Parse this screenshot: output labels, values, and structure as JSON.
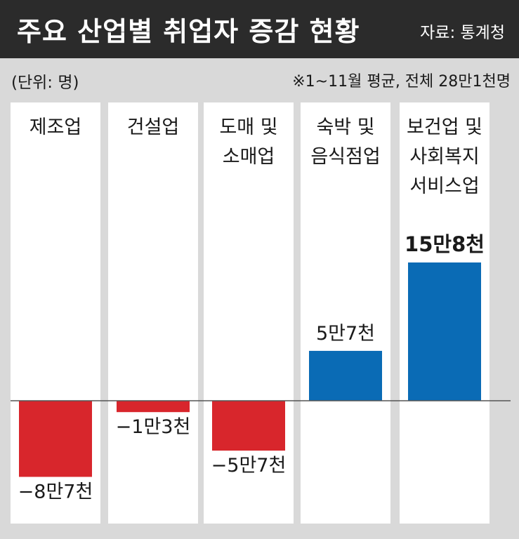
{
  "header": {
    "title": "주요 산업별 취업자 증감 현황",
    "source": "자료: 통계청"
  },
  "unit_text": "(단위: 명)",
  "note_text": "※1~11월 평균, 전체 28만1천명",
  "colors": {
    "negative": "#d8262c",
    "positive": "#0a6bb5",
    "panel": "#ffffff",
    "background": "#d9d9d9",
    "header": "#2b2b2b"
  },
  "chart_data": {
    "type": "bar",
    "categories": [
      [
        "제조업"
      ],
      [
        "건설업"
      ],
      [
        "도매 및",
        "소매업"
      ],
      [
        "숙박 및",
        "음식점업"
      ],
      [
        "보건업 및",
        "사회복지",
        "서비스업"
      ]
    ],
    "values": [
      -87000,
      -13000,
      -57000,
      57000,
      158000
    ],
    "value_labels": [
      "−8만7천",
      "−1만3천",
      "−5만7천",
      "5만7천",
      "15만8천"
    ],
    "highlight_index": 4,
    "title": "주요 산업별 취업자 증감 현황",
    "unit": "명",
    "ylim": [
      -87000,
      158000
    ],
    "grid": false,
    "legend": "none"
  }
}
